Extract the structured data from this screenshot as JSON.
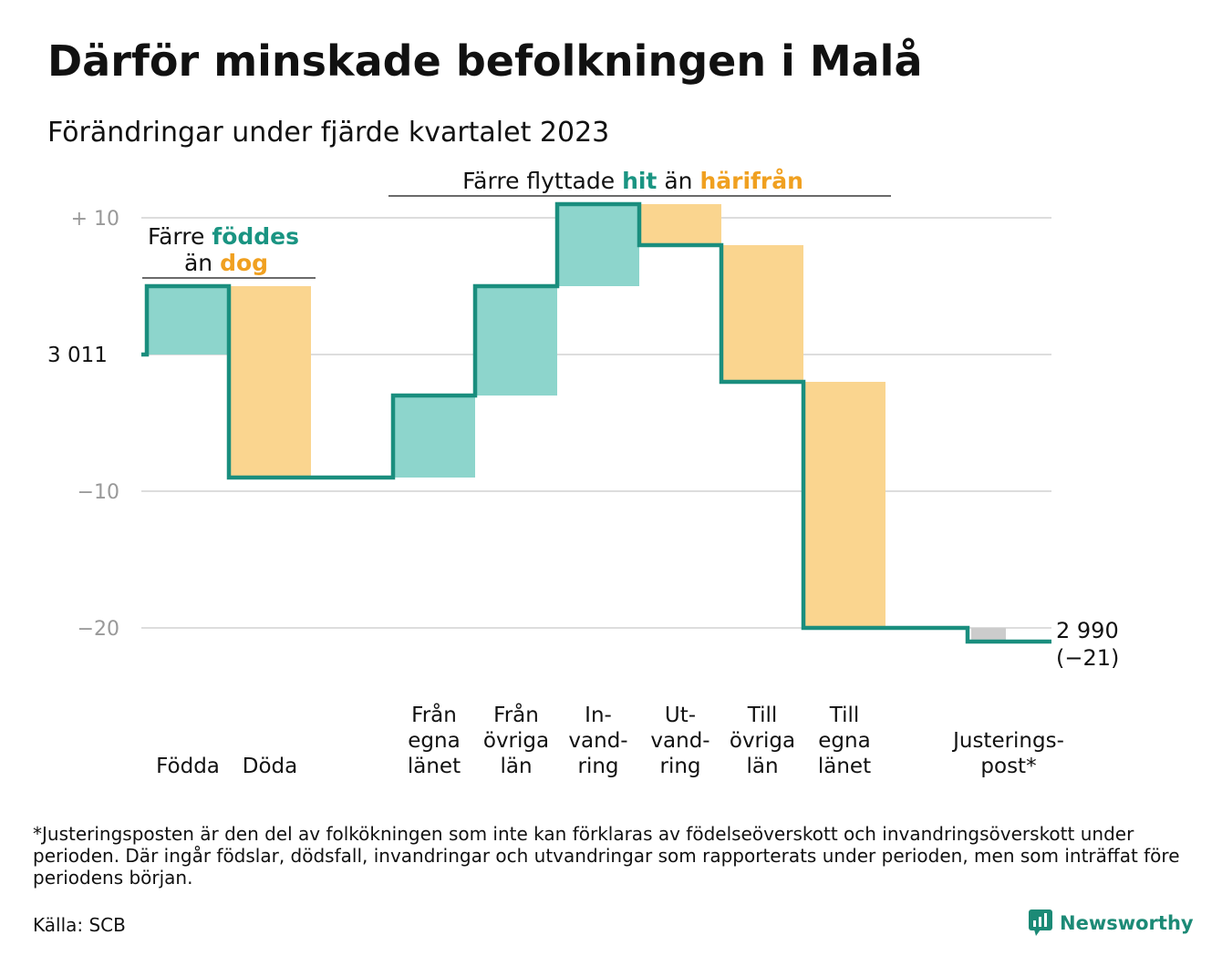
{
  "title": "Därför minskade befolkningen i Malå",
  "subtitle": "Förändringar under fjärde kvartalet 2023",
  "colors": {
    "increase": "#8dd5cc",
    "decrease": "#fad58f",
    "adjustment": "#cccccc",
    "line": "#1a8e7e",
    "teal_text": "#1a9482",
    "orange_text": "#f0a020",
    "grid": "#dddddd",
    "tick": "#999999"
  },
  "annotations": {
    "births_deaths": {
      "line1_prefix": "Färre",
      "line1_highlight": "föddes",
      "line2_prefix": "än",
      "line2_highlight": "dog"
    },
    "moves": {
      "prefix": "Färre flyttade",
      "highlight1": "hit",
      "middle": "än",
      "highlight2": "härifrån"
    }
  },
  "chart_data": {
    "type": "waterfall",
    "start_value": 3011,
    "start_label": "3 011",
    "end_value": 2990,
    "end_label": "2 990",
    "end_change_label": "(−21)",
    "ylim": [
      -24,
      12
    ],
    "y_ticks": [
      {
        "value": 10,
        "label": "+  10"
      },
      {
        "value": 0,
        "label": ""
      },
      {
        "value": -10,
        "label": "−10"
      },
      {
        "value": -20,
        "label": "−20"
      }
    ],
    "grid": true,
    "steps": [
      {
        "label_lines": [
          "Födda"
        ],
        "change": 5,
        "kind": "increase"
      },
      {
        "label_lines": [
          "Döda"
        ],
        "change": -14,
        "kind": "decrease"
      },
      {
        "label_lines": [],
        "change": 0,
        "kind": "none"
      },
      {
        "label_lines": [
          "Från",
          "egna",
          "länet"
        ],
        "change": 6,
        "kind": "increase"
      },
      {
        "label_lines": [
          "Från",
          "övriga",
          "län"
        ],
        "change": 8,
        "kind": "increase"
      },
      {
        "label_lines": [
          "In-",
          "vand-",
          "ring"
        ],
        "change": 6,
        "kind": "increase"
      },
      {
        "label_lines": [
          "Ut-",
          "vand-",
          "ring"
        ],
        "change": -3,
        "kind": "decrease"
      },
      {
        "label_lines": [
          "Till",
          "övriga",
          "län"
        ],
        "change": -10,
        "kind": "decrease"
      },
      {
        "label_lines": [
          "Till",
          "egna",
          "länet"
        ],
        "change": -18,
        "kind": "decrease"
      },
      {
        "label_lines": [],
        "change": 0,
        "kind": "none"
      },
      {
        "label_lines": [
          "Justerings-",
          "post*"
        ],
        "change": -1,
        "kind": "adjustment"
      }
    ]
  },
  "footnote": "*Justeringsposten är den del av folkökningen som inte kan förklaras av födelseöverskott och invandringsöverskott under perioden. Där ingår födslar, dödsfall, invandringar och utvandringar som rapporterats under perioden, men som inträffat före periodens början.",
  "source": "Källa: SCB",
  "brand": "Newsworthy"
}
